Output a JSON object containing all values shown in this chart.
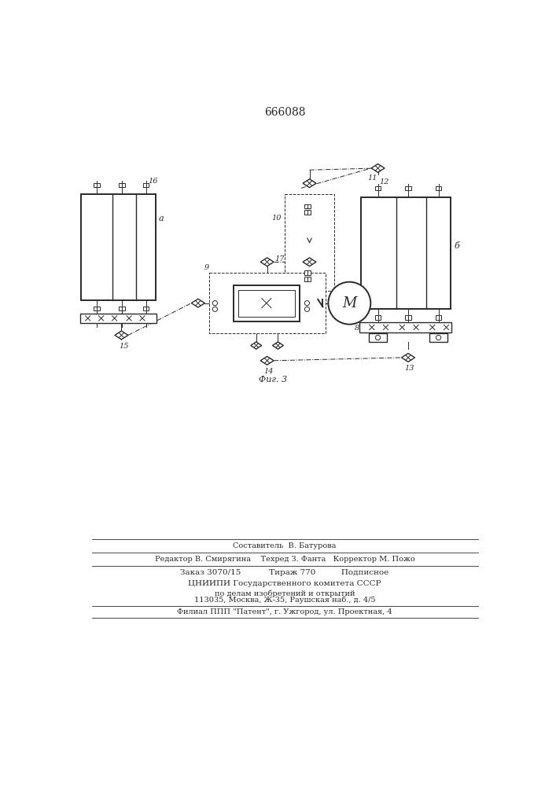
{
  "title": "666088",
  "title_fontsize": 10,
  "fig_caption": "Фиг. 3",
  "bg_color": "#ffffff",
  "line_color": "#2a2a2a",
  "footer_lines": [
    "Составитель  В. Батурова",
    "Редактор В. Смирягина    Техред З. Фанта   Корректор М. Пожо",
    "Заказ 3070/15           Тираж 770          Подписное",
    "ЦНИИПИ Государственного комитета СССР",
    "по делам изобретений и открытий",
    "113035, Москва, Ж-35, Раушская наб., д. 4/5",
    "Филиал ППП \"Патент\", г. Ужгород, ул. Проектная, 4"
  ]
}
